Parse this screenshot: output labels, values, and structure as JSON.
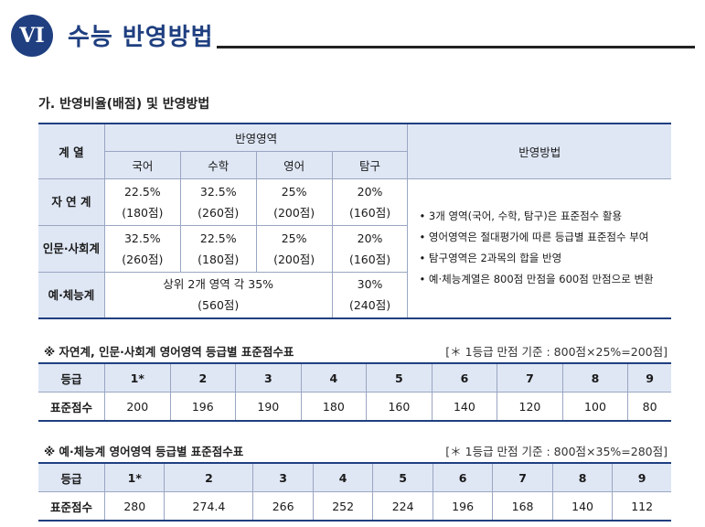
{
  "header": {
    "badge": "VI",
    "title": "수능 반영방법"
  },
  "section_title": "가. 반영비율(배점) 및 반영방법",
  "main_table": {
    "col_lead": "계 열",
    "group": "반영영역",
    "subjects": [
      "국어",
      "수학",
      "영어",
      "탐구"
    ],
    "method_header": "반영방법",
    "rows": [
      {
        "label": "자 연 계",
        "cells": [
          [
            "22.5%",
            "(180점)"
          ],
          [
            "32.5%",
            "(260점)"
          ],
          [
            "25%",
            "(200점)"
          ],
          [
            "20%",
            "(160점)"
          ]
        ]
      },
      {
        "label": "인문·사회계",
        "cells": [
          [
            "32.5%",
            "(260점)"
          ],
          [
            "22.5%",
            "(180점)"
          ],
          [
            "25%",
            "(200점)"
          ],
          [
            "20%",
            "(160점)"
          ]
        ]
      }
    ],
    "arts": {
      "label": "예·체능계",
      "merged": [
        "상위 2개 영역 각 35%",
        "(560점)"
      ],
      "last": [
        "30%",
        "(240점)"
      ]
    },
    "methods": [
      "3개 영역(국어, 수학, 탐구)은 표준점수 활용",
      "영어영역은 절대평가에 따른 등급별 표준점수 부여",
      "탐구영역은 2과목의 합을 반영",
      "예·체능계열은 800점 만점을 600점 만점으로 변환"
    ]
  },
  "table1": {
    "title": "※ 자연계, 인문·사회계 영어영역 등급별 표준점수표",
    "note": "[＊ 1등급 만점 기준 : 800점×25%=200점]",
    "row_labels": [
      "등급",
      "표준점수"
    ],
    "grades": [
      "1*",
      "2",
      "3",
      "4",
      "5",
      "6",
      "7",
      "8",
      "9"
    ],
    "scores": [
      "200",
      "196",
      "190",
      "180",
      "160",
      "140",
      "120",
      "100",
      "80"
    ]
  },
  "table2": {
    "title": "※ 예·체능계 영어영역 등급별 표준점수표",
    "note": "[＊ 1등급 만점 기준 : 800점×35%=280점]",
    "row_labels": [
      "등급",
      "표준점수"
    ],
    "grades": [
      "1*",
      "2",
      "3",
      "4",
      "5",
      "6",
      "7",
      "8",
      "9"
    ],
    "scores": [
      "280",
      "274.4",
      "266",
      "252",
      "224",
      "196",
      "168",
      "140",
      "112"
    ]
  }
}
